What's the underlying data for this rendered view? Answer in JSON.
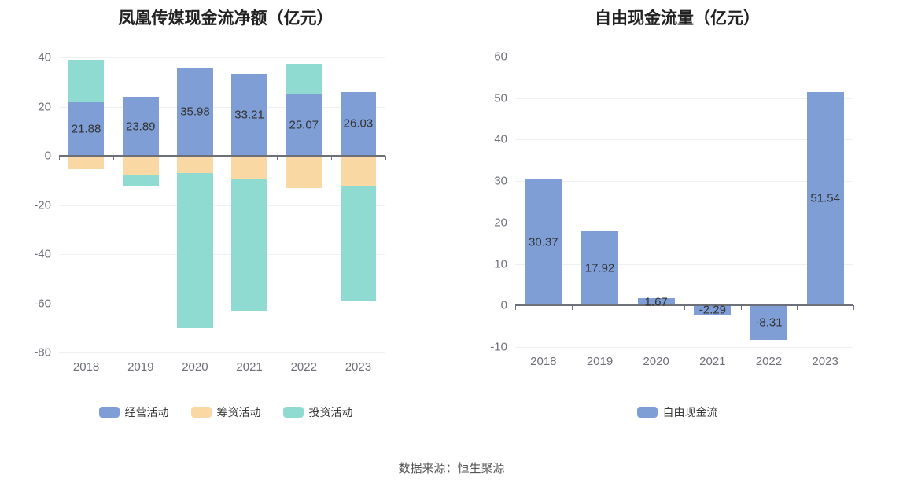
{
  "footer": {
    "source": "数据来源：恒生聚源"
  },
  "chart_data": [
    {
      "type": "bar",
      "stacked": true,
      "title": "凤凰传媒现金流净额（亿元）",
      "xlabel": "",
      "ylabel": "",
      "categories": [
        "2018",
        "2019",
        "2020",
        "2021",
        "2022",
        "2023"
      ],
      "series": [
        {
          "name": "经营活动",
          "color": "#7E9ED5",
          "show_labels": true,
          "values": [
            21.88,
            23.89,
            35.98,
            33.21,
            25.07,
            26.03
          ]
        },
        {
          "name": "筹资活动",
          "color": "#FAD8A3",
          "show_labels": false,
          "values": [
            -5.5,
            -8,
            -7,
            -9.5,
            -13,
            -12.5
          ]
        },
        {
          "name": "投资活动",
          "color": "#8FDBD2",
          "show_labels": false,
          "values": [
            17.2,
            -4,
            -63,
            -53.5,
            12.4,
            -46.5
          ]
        }
      ],
      "ylim": [
        -80,
        40
      ],
      "ytick_step": 20,
      "grid": true,
      "legend_position": "bottom"
    },
    {
      "type": "bar",
      "stacked": false,
      "title": "自由现金流量（亿元）",
      "xlabel": "",
      "ylabel": "",
      "categories": [
        "2018",
        "2019",
        "2020",
        "2021",
        "2022",
        "2023"
      ],
      "series": [
        {
          "name": "自由现金流",
          "color": "#7E9ED5",
          "show_labels": true,
          "values": [
            30.37,
            17.92,
            1.67,
            -2.29,
            -8.31,
            51.54
          ]
        }
      ],
      "ylim": [
        -10,
        60
      ],
      "ytick_step": 10,
      "grid": true,
      "legend_position": "bottom"
    }
  ]
}
